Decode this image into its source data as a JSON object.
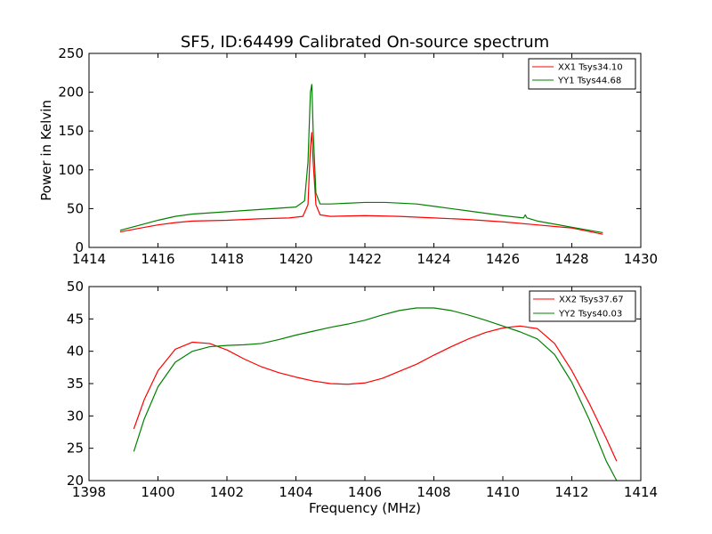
{
  "colors": {
    "xx": "#ff0000",
    "yy": "#008000",
    "axis": "#000000",
    "background": "#ffffff"
  },
  "chart_data": [
    {
      "type": "line",
      "title": "SF5, ID:64499 Calibrated On-source spectrum",
      "xlabel": "",
      "ylabel": "Power in Kelvin",
      "xlim": [
        1414,
        1430
      ],
      "ylim": [
        0,
        250
      ],
      "xticks": [
        "1414",
        "1416",
        "1418",
        "1420",
        "1422",
        "1424",
        "1426",
        "1428",
        "1430"
      ],
      "yticks": [
        "0",
        "50",
        "100",
        "150",
        "200",
        "250"
      ],
      "grid": false,
      "legend_position": "top-right",
      "series": [
        {
          "name": "XX1 Tsys34.10",
          "color": "#ff0000",
          "x": [
            1414.9,
            1415.5,
            1416.0,
            1416.5,
            1417.0,
            1418.0,
            1419.0,
            1419.8,
            1420.2,
            1420.35,
            1420.42,
            1420.46,
            1420.5,
            1420.58,
            1420.7,
            1421.0,
            1422.0,
            1423.0,
            1424.0,
            1425.0,
            1426.0,
            1427.0,
            1428.0,
            1428.9
          ],
          "values": [
            20,
            25,
            29,
            32,
            34,
            35,
            37,
            38,
            40,
            55,
            130,
            148,
            110,
            55,
            42,
            40,
            41,
            40,
            38,
            36,
            33,
            29,
            25,
            17
          ]
        },
        {
          "name": "YY1 Tsys44.68",
          "color": "#008000",
          "x": [
            1414.9,
            1415.5,
            1416.0,
            1416.5,
            1417.0,
            1418.0,
            1419.0,
            1420.0,
            1420.25,
            1420.35,
            1420.42,
            1420.46,
            1420.5,
            1420.58,
            1420.7,
            1421.0,
            1422.0,
            1422.6,
            1423.5,
            1424.0,
            1425.0,
            1426.0,
            1426.6,
            1426.65,
            1426.7,
            1427.0,
            1428.0,
            1428.9
          ],
          "values": [
            22,
            29,
            35,
            40,
            43,
            46,
            49,
            52,
            60,
            110,
            200,
            210,
            150,
            70,
            56,
            56,
            58,
            58,
            56,
            53,
            47,
            41,
            38,
            42,
            38,
            34,
            26,
            19
          ]
        }
      ]
    },
    {
      "type": "line",
      "title": "",
      "xlabel": "Frequency (MHz)",
      "ylabel": "",
      "xlim": [
        1398,
        1414
      ],
      "ylim": [
        20,
        50
      ],
      "xticks": [
        "1398",
        "1400",
        "1402",
        "1404",
        "1406",
        "1408",
        "1410",
        "1412",
        "1414"
      ],
      "yticks": [
        "20",
        "25",
        "30",
        "35",
        "40",
        "45",
        "50"
      ],
      "grid": false,
      "legend_position": "top-right",
      "series": [
        {
          "name": "XX2 Tsys37.67",
          "color": "#ff0000",
          "x": [
            1399.3,
            1399.6,
            1400.0,
            1400.5,
            1401.0,
            1401.5,
            1402.0,
            1402.5,
            1403.0,
            1403.5,
            1404.0,
            1404.5,
            1405.0,
            1405.5,
            1406.0,
            1406.5,
            1407.0,
            1407.5,
            1408.0,
            1408.5,
            1409.0,
            1409.5,
            1410.0,
            1410.5,
            1411.0,
            1411.5,
            1412.0,
            1412.5,
            1413.0,
            1413.3
          ],
          "values": [
            28.0,
            32.5,
            37.0,
            40.3,
            41.4,
            41.2,
            40.2,
            38.8,
            37.6,
            36.7,
            36.0,
            35.4,
            35.0,
            34.9,
            35.1,
            35.8,
            36.9,
            38.0,
            39.4,
            40.7,
            41.9,
            42.9,
            43.6,
            43.9,
            43.5,
            41.2,
            37.0,
            32.0,
            26.5,
            23.0
          ]
        },
        {
          "name": "YY2 Tsys40.03",
          "color": "#008000",
          "x": [
            1399.3,
            1399.6,
            1400.0,
            1400.5,
            1401.0,
            1401.5,
            1402.0,
            1402.5,
            1403.0,
            1403.5,
            1404.0,
            1404.5,
            1405.0,
            1405.5,
            1406.0,
            1406.5,
            1407.0,
            1407.5,
            1408.0,
            1408.5,
            1409.0,
            1409.5,
            1410.0,
            1410.5,
            1411.0,
            1411.5,
            1412.0,
            1412.5,
            1413.0,
            1413.3
          ],
          "values": [
            24.5,
            29.5,
            34.5,
            38.3,
            40.0,
            40.7,
            40.9,
            41.0,
            41.2,
            41.8,
            42.5,
            43.1,
            43.7,
            44.2,
            44.8,
            45.6,
            46.3,
            46.7,
            46.7,
            46.3,
            45.6,
            44.8,
            43.9,
            43.0,
            41.9,
            39.5,
            35.2,
            29.5,
            23.0,
            20.0
          ]
        }
      ]
    }
  ]
}
